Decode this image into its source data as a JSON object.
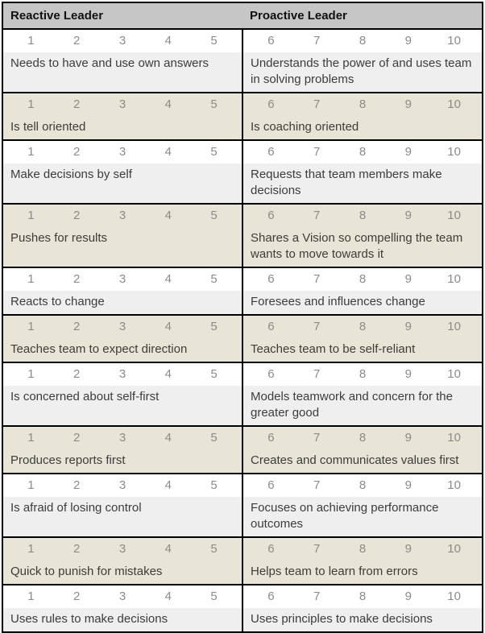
{
  "colors": {
    "page_bg": "#ffffff",
    "border": "#000000",
    "header_bg": "#c6c6c6",
    "header_text": "#111111",
    "tan_bg": "#e8e4d6",
    "gray_bg": "#efefef",
    "white_bg": "#ffffff",
    "number_text": "#8b8b8b",
    "label_text": "#3c3c3c"
  },
  "table": {
    "headers": [
      {
        "label": "Reactive Leader"
      },
      {
        "label": "Proactive Leader"
      }
    ],
    "scale_left": [
      "1",
      "2",
      "3",
      "4",
      "5"
    ],
    "scale_right": [
      "6",
      "7",
      "8",
      "9",
      "10"
    ],
    "rows": [
      {
        "left": "Needs to have and use own answers",
        "right": "Understands the power of and uses team in solving problems"
      },
      {
        "left": "Is tell oriented",
        "right": "Is coaching oriented"
      },
      {
        "left": "Make decisions by self",
        "right": "Requests that team members make decisions"
      },
      {
        "left": "Pushes for results",
        "right": "Shares a Vision so compelling the team wants to move towards it"
      },
      {
        "left": "Reacts to change",
        "right": "Foresees and influences change"
      },
      {
        "left": "Teaches team to expect direction",
        "right": "Teaches team to be self-reliant"
      },
      {
        "left": "Is concerned about self-first",
        "right": "Models teamwork and concern for the greater good"
      },
      {
        "left": "Produces reports first",
        "right": "Creates and communicates values first"
      },
      {
        "left": "Is afraid of losing control",
        "right": "Focuses on achieving performance outcomes"
      },
      {
        "left": "Quick to punish for mistakes",
        "right": "Helps team to learn from errors"
      },
      {
        "left": "Uses rules to make decisions",
        "right": "Uses principles to make decisions"
      }
    ]
  }
}
